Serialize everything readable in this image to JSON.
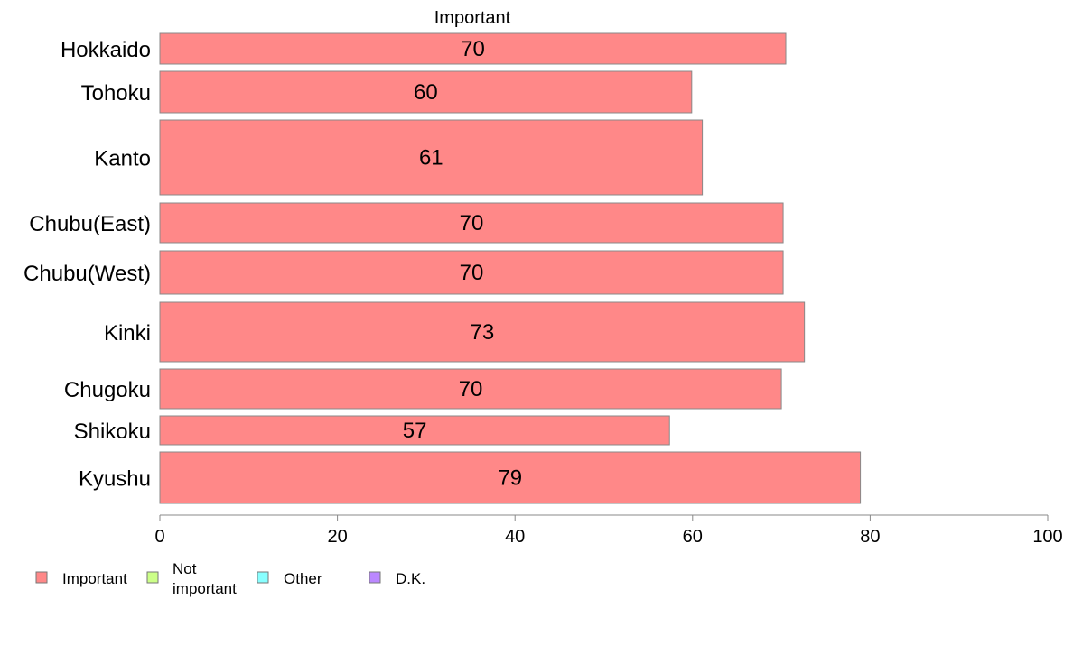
{
  "chart_data": {
    "type": "bar",
    "orientation": "horizontal",
    "title": "Important",
    "categories": [
      "Hokkaido",
      "Tohoku",
      "Kanto",
      "Chubu(East)",
      "Chubu(West)",
      "Kinki",
      "Chugoku",
      "Shikoku",
      "Kyushu"
    ],
    "series": [
      {
        "name": "Important",
        "color": "#ff8888",
        "values": [
          70.5,
          59.9,
          61.1,
          70.2,
          70.2,
          72.6,
          70.0,
          57.4,
          78.9
        ],
        "labels": [
          "70",
          "60",
          "61",
          "70",
          "70",
          "73",
          "70",
          "57",
          "79"
        ]
      }
    ],
    "xlim": [
      0,
      100
    ],
    "xticks": [
      "0",
      "20",
      "40",
      "60",
      "80",
      "100"
    ],
    "legend": {
      "position": "bottom-left",
      "items": [
        {
          "label": "Important",
          "color": "#ff8888"
        },
        {
          "label": "Not important",
          "color": "#ccff88"
        },
        {
          "label": "Other",
          "color": "#88ffff"
        },
        {
          "label": "D.K.",
          "color": "#bb88ff"
        }
      ]
    },
    "grid": false
  }
}
